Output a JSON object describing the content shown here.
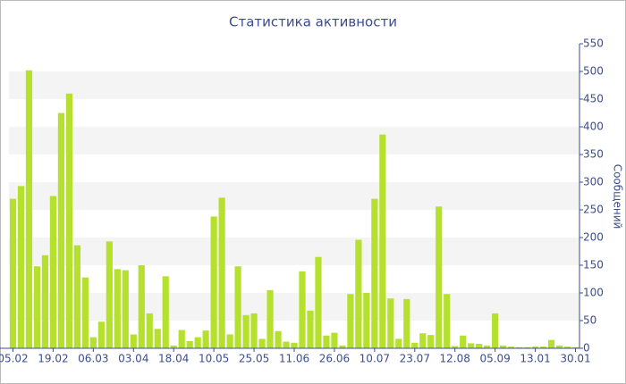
{
  "chart_data": {
    "type": "bar",
    "title": "Статистика активности",
    "y_label": "Сообщений",
    "categories": [
      "05.02",
      null,
      null,
      null,
      null,
      "19.02",
      null,
      null,
      null,
      null,
      "06.03",
      null,
      null,
      null,
      null,
      "03.04",
      null,
      null,
      null,
      null,
      "18.04",
      null,
      null,
      null,
      null,
      "10.05",
      null,
      null,
      null,
      null,
      "25.05",
      null,
      null,
      null,
      null,
      "11.06",
      null,
      null,
      null,
      null,
      "26.06",
      null,
      null,
      null,
      null,
      "10.07",
      null,
      null,
      null,
      null,
      "23.07",
      null,
      null,
      null,
      null,
      "12.08",
      null,
      null,
      null,
      null,
      "05.09",
      null,
      null,
      null,
      null,
      "13.01",
      null,
      null,
      null,
      null,
      "30.01"
    ],
    "values": [
      270,
      293,
      502,
      148,
      168,
      275,
      425,
      460,
      186,
      128,
      20,
      48,
      193,
      143,
      141,
      25,
      150,
      63,
      35,
      130,
      5,
      33,
      13,
      20,
      32,
      238,
      272,
      25,
      148,
      60,
      63,
      17,
      105,
      31,
      12,
      10,
      139,
      68,
      165,
      23,
      28,
      5,
      98,
      196,
      100,
      270,
      386,
      90,
      17,
      89,
      10,
      27,
      24,
      256,
      98,
      4,
      23,
      9,
      8,
      5,
      63,
      5,
      3,
      2,
      2,
      3,
      3,
      15,
      5,
      3,
      2
    ],
    "color": "#b5e02e",
    "ylim": [
      0,
      550
    ],
    "yticks": [
      0,
      50,
      100,
      150,
      200,
      250,
      300,
      350,
      400,
      450,
      500,
      550
    ],
    "grid": true,
    "y_axis_side": "right"
  }
}
